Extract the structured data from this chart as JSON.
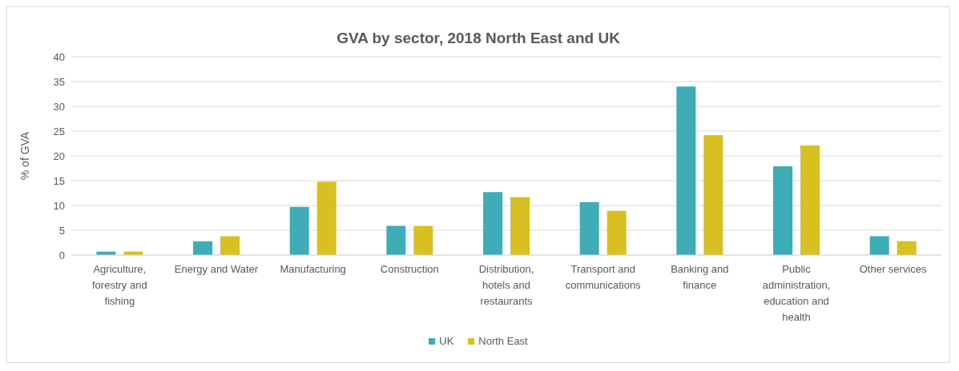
{
  "chart_data": {
    "type": "bar",
    "title": "GVA by sector, 2018 North East and UK",
    "ylabel": "% of GVA",
    "categories": [
      "Agriculture, forestry and fishing",
      "Energy and Water",
      "Manufacturing",
      "Construction",
      "Distribution, hotels and restaurants",
      "Transport and communications",
      "Banking and finance",
      "Public administration, education and health",
      "Other services"
    ],
    "series": [
      {
        "name": "UK",
        "color": "#3fadb7",
        "values": [
          0.7,
          2.8,
          9.7,
          5.9,
          12.7,
          10.7,
          34,
          17.9,
          3.8
        ]
      },
      {
        "name": "North East",
        "color": "#d8bf22",
        "values": [
          0.7,
          3.8,
          14.8,
          5.9,
          11.7,
          8.9,
          24.2,
          22.1,
          2.8
        ]
      }
    ],
    "ylim": [
      0,
      40
    ],
    "yticks": [
      0,
      5,
      10,
      15,
      20,
      25,
      30,
      35,
      40
    ],
    "grid": "y",
    "legend": "bottom"
  }
}
